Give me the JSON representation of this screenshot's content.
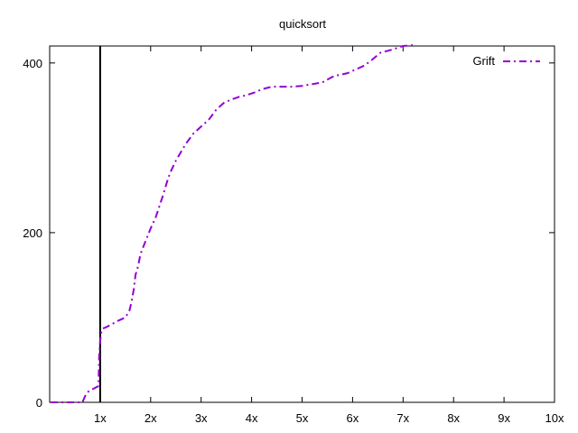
{
  "chart_data": {
    "type": "line",
    "title": "quicksort",
    "xlabel": "",
    "ylabel": "",
    "xlim": [
      0,
      10
    ],
    "ylim": [
      0,
      420
    ],
    "x_ticks": [
      {
        "value": 1,
        "label": "1x"
      },
      {
        "value": 2,
        "label": "2x"
      },
      {
        "value": 3,
        "label": "3x"
      },
      {
        "value": 4,
        "label": "4x"
      },
      {
        "value": 5,
        "label": "5x"
      },
      {
        "value": 6,
        "label": "6x"
      },
      {
        "value": 7,
        "label": "7x"
      },
      {
        "value": 8,
        "label": "8x"
      },
      {
        "value": 9,
        "label": "9x"
      },
      {
        "value": 10,
        "label": "10x"
      }
    ],
    "y_ticks": [
      {
        "value": 0,
        "label": "0"
      },
      {
        "value": 200,
        "label": "200"
      },
      {
        "value": 400,
        "label": "400"
      }
    ],
    "reference_line_x": 1,
    "legend_position": "top-right",
    "grid": false,
    "series": [
      {
        "name": "Grift",
        "color": "#9400d3",
        "line_style": "dash-dot",
        "x": [
          0.02,
          0.25,
          0.5,
          0.65,
          0.7,
          0.75,
          0.8,
          0.9,
          0.96,
          0.97,
          0.98,
          1.0,
          1.02,
          1.05,
          1.1,
          1.2,
          1.35,
          1.5,
          1.58,
          1.62,
          1.67,
          1.7,
          1.75,
          1.8,
          1.9,
          2.0,
          2.1,
          2.25,
          2.35,
          2.42,
          2.5,
          2.6,
          2.7,
          2.85,
          3.0,
          3.15,
          3.3,
          3.45,
          3.6,
          3.75,
          3.9,
          4.05,
          4.2,
          4.4,
          4.6,
          4.8,
          5.0,
          5.2,
          5.4,
          5.55,
          5.65,
          5.75,
          5.9,
          6.05,
          6.2,
          6.35,
          6.55,
          6.8,
          7.0,
          7.2
        ],
        "y": [
          0,
          0,
          0,
          0,
          7,
          12,
          14,
          17,
          19,
          25,
          55,
          72,
          82,
          87,
          88,
          91,
          96,
          100,
          108,
          118,
          135,
          150,
          160,
          175,
          190,
          205,
          218,
          245,
          265,
          275,
          285,
          295,
          305,
          317,
          325,
          333,
          345,
          353,
          357,
          360,
          362,
          365,
          369,
          372,
          372,
          372,
          373,
          375,
          377,
          382,
          385,
          386,
          388,
          392,
          396,
          402,
          412,
          416,
          420,
          421
        ]
      }
    ]
  }
}
